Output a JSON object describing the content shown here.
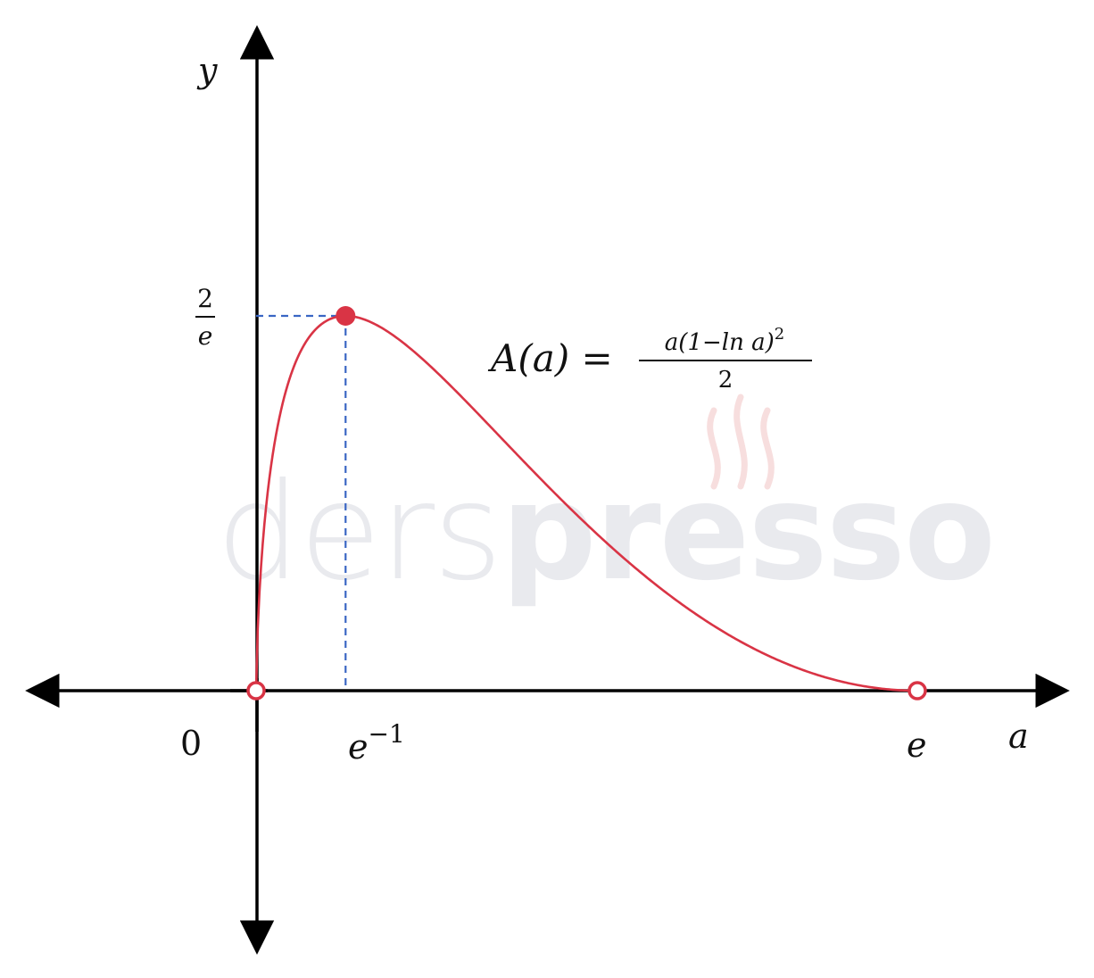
{
  "watermark": {
    "text_light": "ders",
    "text_bold": "presso",
    "color": "#e9eaee",
    "steam_color": "#f7dede"
  },
  "colors": {
    "axis": "#000000",
    "curve": "#d93445",
    "guide": "#3a66c4"
  },
  "chart_data": {
    "type": "line",
    "function": "A(a) = a(1 - ln a)^2 / 2",
    "x_domain": [
      0,
      2.718281828
    ],
    "y_domain": [
      0,
      0.7357588823
    ],
    "xlabel": "a",
    "ylabel": "y",
    "formula": {
      "lhs": "A(a) = ",
      "numerator": "a(1−ln a)",
      "numerator_exp": "2",
      "denominator": "2"
    },
    "x_ticks": [
      {
        "value": 0,
        "label": "0"
      },
      {
        "value": 0.3678794412,
        "label_base": "e",
        "label_exp": "−1"
      },
      {
        "value": 2.718281828,
        "label": "e"
      }
    ],
    "y_ticks": [
      {
        "value": 0.7357588823,
        "numerator": "2",
        "denominator": "e"
      }
    ],
    "points": [
      {
        "x": 0,
        "y": 0,
        "style": "open"
      },
      {
        "x": 0.3678794412,
        "y": 0.7357588823,
        "style": "filled"
      },
      {
        "x": 2.718281828,
        "y": 0,
        "style": "open"
      }
    ],
    "guides": {
      "to_max_point": true,
      "style": "dashed"
    },
    "grid": false
  }
}
